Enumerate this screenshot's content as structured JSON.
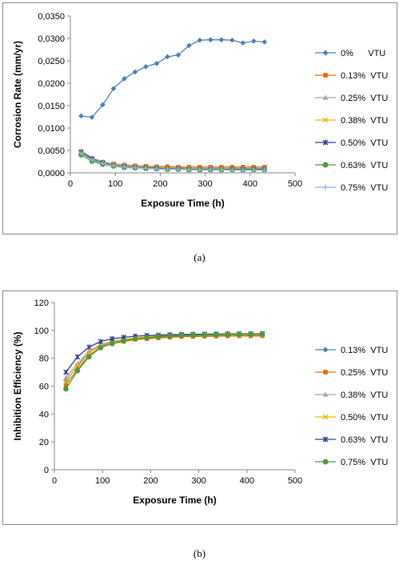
{
  "chart_data": [
    {
      "type": "line",
      "panel_label": "(a)",
      "xlabel": "Exposure Time (h)",
      "ylabel": "Corrosion Rate (mm/yr)",
      "xlim": [
        0,
        500
      ],
      "ylim": [
        0,
        0.035
      ],
      "x_ticks": [
        "0",
        "100",
        "200",
        "300",
        "400",
        "500"
      ],
      "y_ticks": [
        "0,0000",
        "0,0050",
        "0,0100",
        "0,0150",
        "0,0200",
        "0,0250",
        "0,0300",
        "0,0350"
      ],
      "grid": false,
      "legend_position": "right",
      "x": [
        24,
        48,
        72,
        96,
        120,
        144,
        168,
        192,
        216,
        240,
        264,
        288,
        312,
        336,
        360,
        384,
        408,
        432
      ],
      "series": [
        {
          "name": "0%      VTU",
          "color": "#4a7ebb",
          "marker": "diamond",
          "values": [
            0.0127,
            0.0124,
            0.0152,
            0.0188,
            0.021,
            0.0225,
            0.0237,
            0.0244,
            0.0259,
            0.0263,
            0.0284,
            0.0296,
            0.0297,
            0.0297,
            0.0296,
            0.029,
            0.0294,
            0.0292
          ]
        },
        {
          "name": "0.13%  VTU",
          "color": "#e46c0a",
          "marker": "square",
          "values": [
            0.0045,
            0.0032,
            0.0024,
            0.002,
            0.0018,
            0.0016,
            0.0015,
            0.0014,
            0.0014,
            0.0013,
            0.0013,
            0.0013,
            0.0013,
            0.0013,
            0.0013,
            0.0013,
            0.0013,
            0.0013
          ]
        },
        {
          "name": "0.25%  VTU",
          "color": "#a5a5a5",
          "marker": "triangle",
          "values": [
            0.005,
            0.0034,
            0.0025,
            0.002,
            0.0017,
            0.0015,
            0.0013,
            0.0012,
            0.0011,
            0.0011,
            0.001,
            0.001,
            0.001,
            0.001,
            0.001,
            0.001,
            0.001,
            0.001
          ]
        },
        {
          "name": "0.38%  VTU",
          "color": "#e8b700",
          "marker": "x",
          "values": [
            0.0048,
            0.0032,
            0.0023,
            0.0018,
            0.0015,
            0.0013,
            0.0012,
            0.0011,
            0.001,
            0.001,
            0.0009,
            0.0009,
            0.0009,
            0.0009,
            0.0009,
            0.0009,
            0.0008,
            0.0008
          ]
        },
        {
          "name": "0.50%  VTU",
          "color": "#2e3d94",
          "marker": "star",
          "values": [
            0.0046,
            0.0031,
            0.0022,
            0.0017,
            0.0014,
            0.0012,
            0.0011,
            0.001,
            0.0009,
            0.0009,
            0.0008,
            0.0008,
            0.0008,
            0.0008,
            0.0008,
            0.0008,
            0.0008,
            0.0008
          ]
        },
        {
          "name": "0.63%  VTU",
          "color": "#4f9a3a",
          "marker": "circle",
          "values": [
            0.004,
            0.0026,
            0.0019,
            0.0015,
            0.0012,
            0.0011,
            0.001,
            0.0009,
            0.0008,
            0.0008,
            0.0007,
            0.0007,
            0.0007,
            0.0007,
            0.0007,
            0.0007,
            0.0007,
            0.0007
          ]
        },
        {
          "name": "0.75%  VTU",
          "color": "#8fb4e3",
          "marker": "plus",
          "values": [
            0.0044,
            0.0029,
            0.0021,
            0.0016,
            0.0013,
            0.0011,
            0.001,
            0.0009,
            0.0008,
            0.0008,
            0.0007,
            0.0007,
            0.0007,
            0.0007,
            0.0006,
            0.0006,
            0.0006,
            0.0006
          ]
        }
      ]
    },
    {
      "type": "line",
      "panel_label": "(b)",
      "xlabel": "Exposure Time (h)",
      "ylabel": "Inhibition Efficiency (%)",
      "xlim": [
        0,
        500
      ],
      "ylim": [
        0,
        120
      ],
      "x_ticks": [
        "0",
        "100",
        "200",
        "300",
        "400",
        "500"
      ],
      "y_ticks": [
        "0",
        "20",
        "40",
        "60",
        "80",
        "100",
        "120"
      ],
      "grid": false,
      "legend_position": "right",
      "x": [
        24,
        48,
        72,
        96,
        120,
        144,
        168,
        192,
        216,
        240,
        264,
        288,
        312,
        336,
        360,
        384,
        408,
        432
      ],
      "series": [
        {
          "name": "0.13%  VTU",
          "color": "#4a7ebb",
          "marker": "diamond",
          "values": [
            64,
            74,
            84,
            89,
            91.5,
            93,
            94,
            94.5,
            95,
            95.5,
            96,
            96,
            96.2,
            96.3,
            96.4,
            96.5,
            96.5,
            96.5
          ]
        },
        {
          "name": "0.25%  VTU",
          "color": "#e46c0a",
          "marker": "square",
          "values": [
            61,
            72,
            82,
            88,
            90.5,
            92,
            93.5,
            94,
            94.5,
            95,
            95.5,
            95.6,
            95.7,
            95.8,
            96,
            96,
            96,
            96
          ]
        },
        {
          "name": "0.38%  VTU",
          "color": "#a5a5a5",
          "marker": "triangle",
          "values": [
            66,
            76,
            85,
            90,
            92,
            93.5,
            94.5,
            95,
            95.5,
            96,
            96.3,
            96.5,
            96.6,
            96.7,
            96.8,
            96.9,
            97,
            97
          ]
        },
        {
          "name": "0.50%  VTU",
          "color": "#e8b700",
          "marker": "x",
          "values": [
            63,
            75,
            84,
            89.5,
            92,
            93.5,
            94.5,
            95.2,
            95.8,
            96.2,
            96.5,
            96.7,
            96.8,
            96.9,
            97,
            97,
            97.1,
            97.1
          ]
        },
        {
          "name": "0.63%  VTU",
          "color": "#2e3d94",
          "marker": "star",
          "values": [
            70,
            81,
            88,
            92,
            94,
            95,
            95.8,
            96.3,
            96.6,
            96.9,
            97.1,
            97.2,
            97.3,
            97.4,
            97.5,
            97.5,
            97.6,
            97.6
          ]
        },
        {
          "name": "0.75%  VTU",
          "color": "#4f9a3a",
          "marker": "circle",
          "values": [
            58,
            71,
            81,
            87.5,
            90.5,
            92.5,
            94,
            94.8,
            95.5,
            96,
            96.3,
            96.6,
            96.8,
            97,
            97.1,
            97.2,
            97.3,
            97.4
          ]
        }
      ]
    }
  ]
}
